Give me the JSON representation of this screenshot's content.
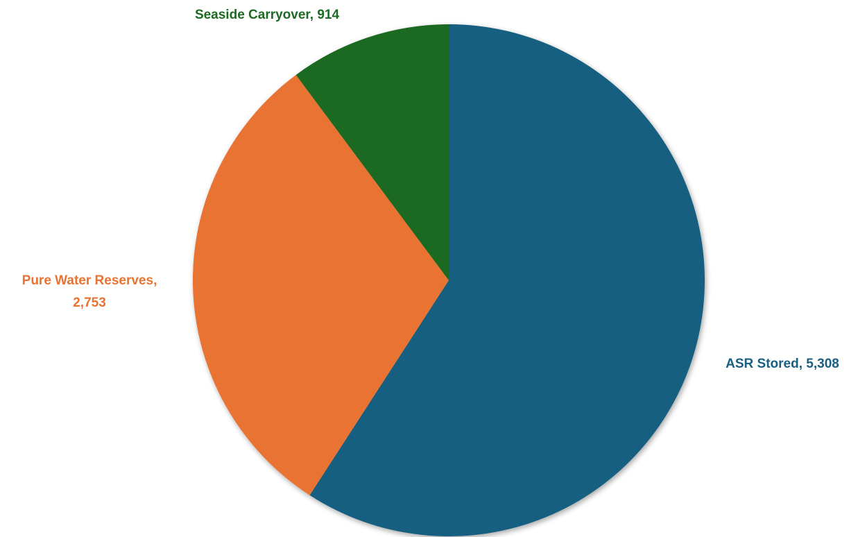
{
  "chart_data": {
    "type": "pie",
    "start_angle": "12 o'clock",
    "direction": "clockwise",
    "shadow": true,
    "slices": [
      {
        "name": "ASR Stored",
        "value": 5308,
        "value_label": "5,308",
        "color": "#185F80"
      },
      {
        "name": "Pure Water Reserves",
        "value": 2753,
        "value_label": "2,753",
        "color": "#E87333"
      },
      {
        "name": "Seaside Carryover",
        "value": 914,
        "value_label": "914",
        "color": "#1D6A24"
      }
    ]
  }
}
